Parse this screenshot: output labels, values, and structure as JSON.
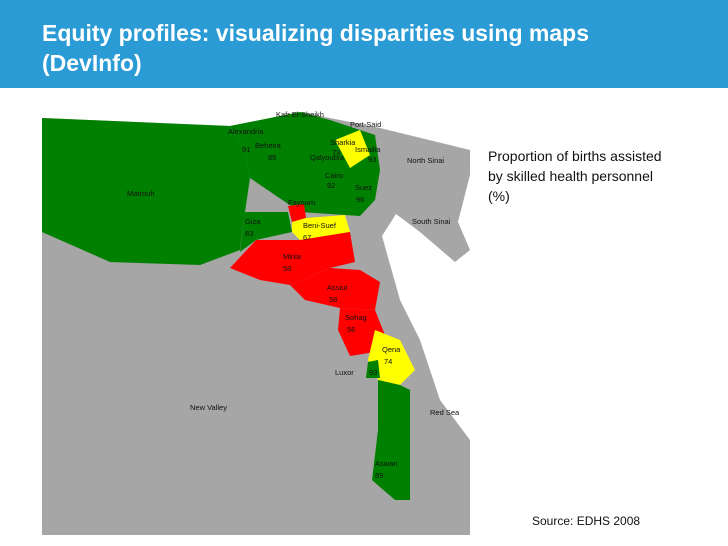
{
  "header": {
    "title_line1": "Equity profiles: visualizing disparities using maps",
    "title_line2": "(DevInfo)"
  },
  "map": {
    "regions": [
      {
        "name": "Kafr El-Sheikh"
      },
      {
        "name": "Port-Said"
      },
      {
        "name": "Alexandria",
        "value": "91"
      },
      {
        "name": "Beheira",
        "value": "85"
      },
      {
        "name": "Sharkia",
        "value": "73"
      },
      {
        "name": "Ismailia",
        "value": "93"
      },
      {
        "name": "Qalyoubia"
      },
      {
        "name": "Cairo",
        "value": "92"
      },
      {
        "name": "Suez",
        "value": "96"
      },
      {
        "name": "North Sinai"
      },
      {
        "name": "Matrouh"
      },
      {
        "name": "Fayoum"
      },
      {
        "name": "Giza",
        "value": "83"
      },
      {
        "name": "Beni-Suef",
        "value": "67"
      },
      {
        "name": "South Sinai"
      },
      {
        "name": "Minia",
        "value": "58"
      },
      {
        "name": "Assiut",
        "value": "58"
      },
      {
        "name": "Sohag",
        "value": "56"
      },
      {
        "name": "Qena",
        "value": "74"
      },
      {
        "name": "Luxor",
        "value": "93"
      },
      {
        "name": "New Valley"
      },
      {
        "name": "Red Sea"
      },
      {
        "name": "Aswan",
        "value": "89"
      }
    ]
  },
  "legend": {
    "line1": "Proportion of births assisted",
    "line2": "by skilled health personnel",
    "line3": "(%)"
  },
  "source": "Source: EDHS 2008"
}
